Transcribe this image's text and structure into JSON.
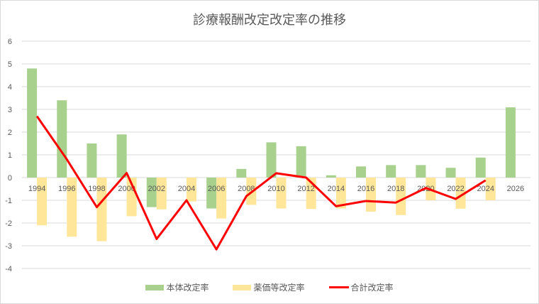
{
  "chart_data": {
    "type": "bar",
    "title": "診療報酬改定改定率の推移",
    "xlabel": "",
    "ylabel": "",
    "ylim": [
      -4,
      6
    ],
    "yticks": [
      6,
      5,
      4,
      3,
      2,
      1,
      0,
      -1,
      -2,
      -3,
      -4
    ],
    "grid": true,
    "legend_position": "bottom",
    "categories": [
      "1994",
      "1996",
      "1998",
      "2000",
      "2002",
      "2004",
      "2006",
      "2008",
      "2010",
      "2012",
      "2014",
      "2016",
      "2018",
      "2020",
      "2022",
      "2024",
      "2026"
    ],
    "series": [
      {
        "name": "本体改定率",
        "type": "bar",
        "color": "#a9d18e",
        "values": [
          4.8,
          3.4,
          1.5,
          1.9,
          -1.3,
          0.0,
          -1.36,
          0.38,
          1.55,
          1.38,
          0.1,
          0.49,
          0.55,
          0.55,
          0.43,
          0.88,
          3.09
        ]
      },
      {
        "name": "薬価等改定率",
        "type": "bar",
        "color": "#ffe699",
        "values": [
          -2.1,
          -2.6,
          -2.8,
          -1.7,
          -1.4,
          -1.05,
          -1.8,
          -1.2,
          -1.36,
          -1.38,
          -1.36,
          -1.5,
          -1.65,
          -1.0,
          -1.37,
          -1.0,
          null
        ]
      },
      {
        "name": "合計改定率",
        "type": "line",
        "color": "#ff0000",
        "values": [
          2.7,
          0.8,
          -1.3,
          0.2,
          -2.7,
          -1.0,
          -3.16,
          -0.82,
          0.19,
          0.0,
          -1.26,
          -1.03,
          -1.1,
          -0.46,
          -0.94,
          -0.12,
          null
        ]
      }
    ]
  },
  "legend": {
    "items": [
      {
        "label": "本体改定率",
        "color": "#a9d18e"
      },
      {
        "label": "薬価等改定率",
        "color": "#ffe699"
      },
      {
        "label": "合計改定率",
        "color": "#ff0000"
      }
    ]
  }
}
